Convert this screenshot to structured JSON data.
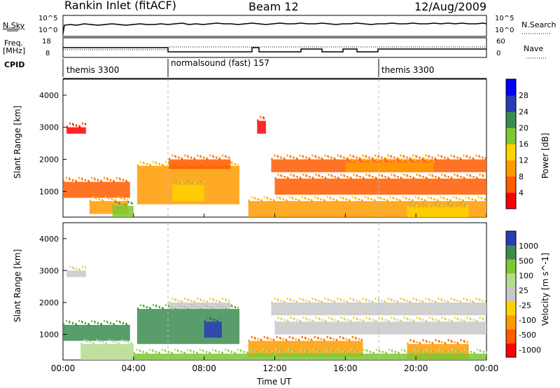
{
  "header": {
    "station": "Rankin Inlet (fitACF)",
    "beam": "Beam 12",
    "date": "12/Aug/2009"
  },
  "top_panels": {
    "nsky_label": "N.Sky",
    "nsky_ticks": [
      "10^5",
      "10^0"
    ],
    "nsearch_label": "N.Search",
    "nsearch_ticks": [
      "10^5",
      "10^0"
    ],
    "freq_label": "Freq.",
    "freq_unit": "[MHz]",
    "freq_ticks": [
      "18",
      "8"
    ],
    "nave_label": "Nave",
    "nave_ticks": [
      "60",
      "0"
    ],
    "cpid_label": "CPID",
    "cpid_segments": [
      "themis 3300",
      "normalsound (fast) 157",
      "themis 3300"
    ]
  },
  "chart_data": [
    {
      "type": "heatmap",
      "title": "",
      "ylabel": "Slant Range [km]",
      "colorbar_label": "Power [dB]",
      "colorbar_ticks": [
        "28",
        "24",
        "20",
        "16",
        "12",
        "8",
        "4"
      ],
      "colorbar_colors": [
        "#ff0000",
        "#ff5a00",
        "#ff9b00",
        "#ffd200",
        "#7dc832",
        "#3c8c50",
        "#283cb4",
        "#0000ff"
      ],
      "yticks": [
        "4000",
        "3000",
        "2000",
        "1000"
      ],
      "ylim": [
        200,
        4500
      ],
      "xlim": [
        "00:00",
        "24:00"
      ],
      "regions": [
        {
          "t0": 0.0,
          "t1": 3.8,
          "r0": 800,
          "r1": 1300,
          "level": 1
        },
        {
          "t0": 1.5,
          "t1": 3.7,
          "r0": 300,
          "r1": 700,
          "level": 2
        },
        {
          "t0": 2.8,
          "t1": 4.0,
          "r0": 200,
          "r1": 550,
          "level": 4
        },
        {
          "t0": 0.2,
          "t1": 1.3,
          "r0": 2800,
          "r1": 3000,
          "level": 0
        },
        {
          "t0": 4.2,
          "t1": 10.0,
          "r0": 600,
          "r1": 1800,
          "level": 2
        },
        {
          "t0": 6.2,
          "t1": 8.0,
          "r0": 700,
          "r1": 1200,
          "level": 3
        },
        {
          "t0": 6.0,
          "t1": 9.5,
          "r0": 1700,
          "r1": 2000,
          "level": 1
        },
        {
          "t0": 11.0,
          "t1": 11.5,
          "r0": 2800,
          "r1": 3200,
          "level": 0
        },
        {
          "t0": 11.8,
          "t1": 24.0,
          "r0": 1600,
          "r1": 2000,
          "level": 1
        },
        {
          "t0": 12.0,
          "t1": 24.0,
          "r0": 900,
          "r1": 1400,
          "level": 1
        },
        {
          "t0": 10.5,
          "t1": 24.0,
          "r0": 200,
          "r1": 700,
          "level": 2
        },
        {
          "t0": 19.5,
          "t1": 23.0,
          "r0": 200,
          "r1": 500,
          "level": 3
        },
        {
          "t0": 16.0,
          "t1": 21.0,
          "r0": 1600,
          "r1": 1900,
          "level": 2
        }
      ]
    },
    {
      "type": "heatmap",
      "title": "",
      "ylabel": "Slant Range [km]",
      "colorbar_label": "Velocity [m s^-1]",
      "colorbar_ticks": [
        "1000",
        "500",
        "100",
        "25",
        "-25",
        "-100",
        "-500",
        "-1000"
      ],
      "colorbar_colors": [
        "#283cb4",
        "#3c8c50",
        "#7dc832",
        "#b4dc8c",
        "#c8c8c8",
        "#ffd200",
        "#ff9b00",
        "#ff5a00",
        "#ff0000"
      ],
      "yticks": [
        "4000",
        "3000",
        "2000",
        "1000"
      ],
      "ylim": [
        200,
        4500
      ],
      "xlim": [
        "00:00",
        "24:00"
      ],
      "regions": [
        {
          "t0": 0.0,
          "t1": 3.8,
          "r0": 800,
          "r1": 1300,
          "level": 1
        },
        {
          "t0": 1.0,
          "t1": 4.0,
          "r0": 200,
          "r1": 700,
          "level": 3
        },
        {
          "t0": 0.2,
          "t1": 1.3,
          "r0": 2800,
          "r1": 3000,
          "level": 4
        },
        {
          "t0": 4.2,
          "t1": 10.0,
          "r0": 700,
          "r1": 1800,
          "level": 1
        },
        {
          "t0": 8.0,
          "t1": 9.0,
          "r0": 900,
          "r1": 1400,
          "level": 0
        },
        {
          "t0": 6.0,
          "t1": 9.5,
          "r0": 1800,
          "r1": 2000,
          "level": 4
        },
        {
          "t0": 11.8,
          "t1": 24.0,
          "r0": 1600,
          "r1": 2000,
          "level": 4
        },
        {
          "t0": 12.0,
          "t1": 24.0,
          "r0": 1000,
          "r1": 1400,
          "level": 4
        },
        {
          "t0": 10.5,
          "t1": 17.0,
          "r0": 300,
          "r1": 800,
          "level": 6
        },
        {
          "t0": 19.5,
          "t1": 23.0,
          "r0": 200,
          "r1": 700,
          "level": 6
        },
        {
          "t0": 4.0,
          "t1": 24.0,
          "r0": 200,
          "r1": 400,
          "level": 2
        }
      ]
    }
  ],
  "xaxis": {
    "ticks": [
      "00:00",
      "04:00",
      "08:00",
      "12:00",
      "16:00",
      "20:00",
      "00:00"
    ],
    "label": "Time UT"
  }
}
